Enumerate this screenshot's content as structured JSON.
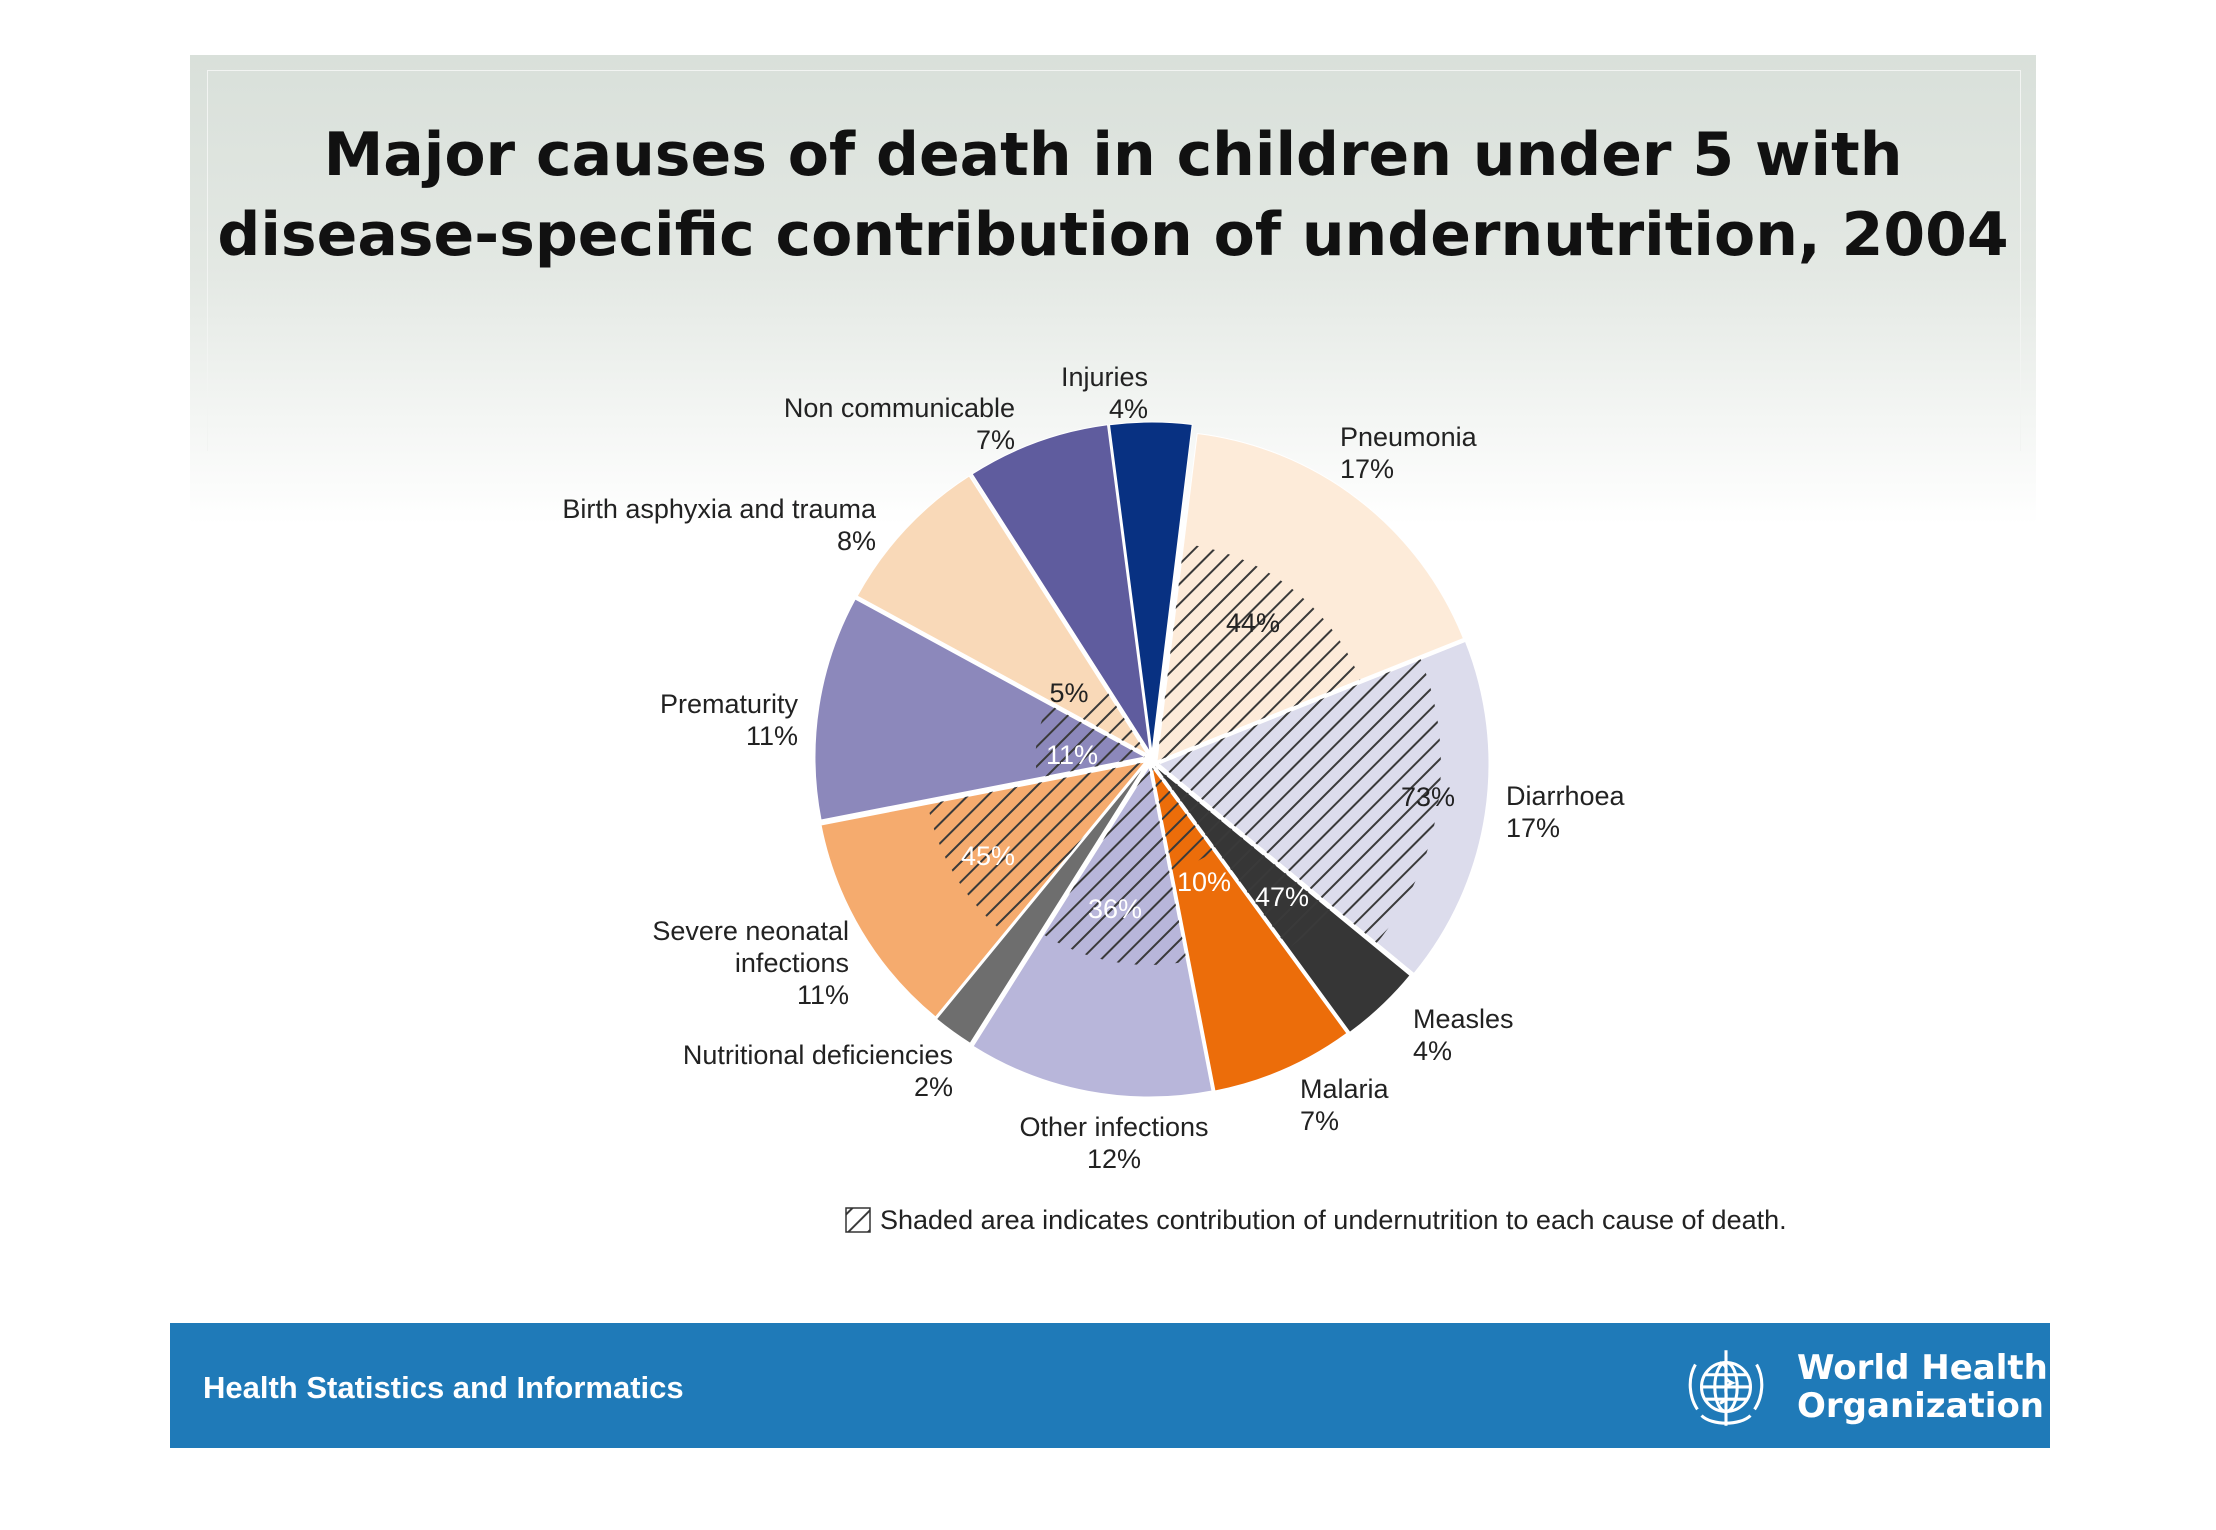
{
  "title_line1": "Major causes of death in children under 5 with",
  "title_line2": "disease-specific contribution of undernutrition, 2004",
  "chart_data": {
    "type": "pie",
    "title": "Major causes of death in children under 5 with disease-specific contribution of undernutrition, 2004",
    "unit": "%",
    "slices": [
      {
        "label": "Pneumonia",
        "value": 17,
        "value_label": "17%",
        "undernutrition_share": 44,
        "undernutrition_label": "44%",
        "color": "#fdebd9"
      },
      {
        "label": "Diarrhoea",
        "value": 17,
        "value_label": "17%",
        "undernutrition_share": 73,
        "undernutrition_label": "73%",
        "color": "#dcdcec"
      },
      {
        "label": "Measles",
        "value": 4,
        "value_label": "4%",
        "undernutrition_share": 47,
        "undernutrition_label": "47%",
        "color": "#363636"
      },
      {
        "label": "Malaria",
        "value": 7,
        "value_label": "7%",
        "undernutrition_share": 10,
        "undernutrition_label": "10%",
        "color": "#ec6d0a"
      },
      {
        "label": "Other infections",
        "value": 12,
        "value_label": "12%",
        "undernutrition_share": 36,
        "undernutrition_label": "36%",
        "color": "#b8b6da"
      },
      {
        "label": "Nutritional deficiencies",
        "value": 2,
        "value_label": "2%",
        "color": "#6e6e6e"
      },
      {
        "label": "Severe neonatal infections",
        "value": 11,
        "value_label": "11%",
        "undernutrition_share": 45,
        "undernutrition_label": "45%",
        "color": "#f5ab6e"
      },
      {
        "label": "Prematurity",
        "value": 11,
        "value_label": "11%",
        "undernutrition_share": 11,
        "undernutrition_label": "11%",
        "color": "#8c88bb"
      },
      {
        "label": "Birth asphyxia and trauma",
        "value": 8,
        "value_label": "8%",
        "undernutrition_share": 5,
        "undernutrition_label": "5%",
        "color": "#f9d9b8"
      },
      {
        "label": "Non communicable",
        "value": 7,
        "value_label": "7%",
        "color": "#5f5c9e"
      },
      {
        "label": "Injuries",
        "value": 4,
        "value_label": "4%",
        "color": "#083182"
      }
    ],
    "legend": "Shaded area indicates contribution of undernutrition to each cause of death.",
    "legend_position": "bottom"
  },
  "footer": {
    "department": "Health Statistics and Informatics",
    "org_line1": "World Health",
    "org_line2": "Organization",
    "org_logo": "who-emblem-icon"
  }
}
